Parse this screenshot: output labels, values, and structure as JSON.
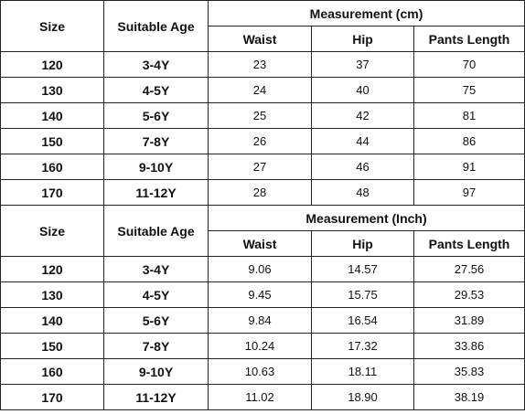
{
  "tables": [
    {
      "headers": {
        "size": "Size",
        "age": "Suitable Age",
        "group": "Measurement (cm)",
        "columns": [
          "Waist",
          "Hip",
          "Pants Length"
        ]
      },
      "rows": [
        [
          "120",
          "3-4Y",
          "23",
          "37",
          "70"
        ],
        [
          "130",
          "4-5Y",
          "24",
          "40",
          "75"
        ],
        [
          "140",
          "5-6Y",
          "25",
          "42",
          "81"
        ],
        [
          "150",
          "7-8Y",
          "26",
          "44",
          "86"
        ],
        [
          "160",
          "9-10Y",
          "27",
          "46",
          "91"
        ],
        [
          "170",
          "11-12Y",
          "28",
          "48",
          "97"
        ]
      ]
    },
    {
      "headers": {
        "size": "Size",
        "age": "Suitable Age",
        "group": "Measurement (Inch)",
        "columns": [
          "Waist",
          "Hip",
          "Pants Length"
        ]
      },
      "rows": [
        [
          "120",
          "3-4Y",
          "9.06",
          "14.57",
          "27.56"
        ],
        [
          "130",
          "4-5Y",
          "9.45",
          "15.75",
          "29.53"
        ],
        [
          "140",
          "5-6Y",
          "9.84",
          "16.54",
          "31.89"
        ],
        [
          "150",
          "7-8Y",
          "10.24",
          "17.32",
          "33.86"
        ],
        [
          "160",
          "9-10Y",
          "10.63",
          "18.11",
          "35.83"
        ],
        [
          "170",
          "11-12Y",
          "11.02",
          "18.90",
          "38.19"
        ]
      ]
    }
  ]
}
